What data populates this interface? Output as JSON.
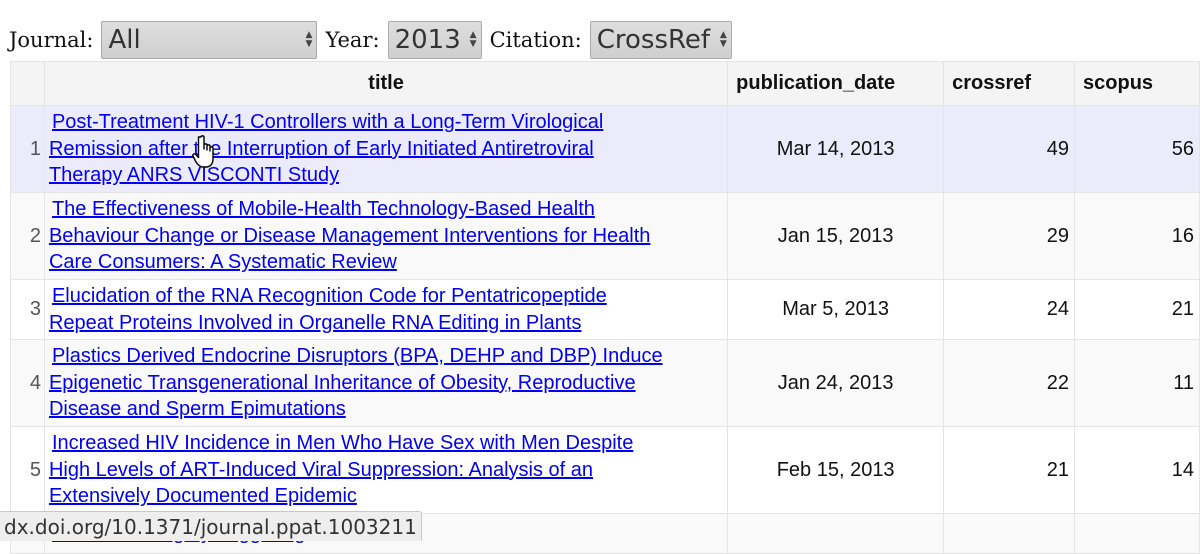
{
  "filters": {
    "journal_label": "Journal:",
    "journal_value": "All",
    "year_label": "Year:",
    "year_value": "2013",
    "citation_label": "Citation:",
    "citation_value": "CrossRef"
  },
  "table": {
    "columns": [
      "",
      "title",
      "publication_date",
      "crossref",
      "scopus"
    ],
    "rows": [
      {
        "num": "1",
        "title_lines": [
          "Post-Treatment HIV-1 Controllers with a Long-Term Virological",
          "Remission after the Interruption of Early Initiated Antiretroviral",
          "Therapy ANRS VISCONTI Study"
        ],
        "date": "Mar 14, 2013",
        "crossref": "49",
        "scopus": "56"
      },
      {
        "num": "2",
        "title_lines": [
          "The Effectiveness of Mobile-Health Technology-Based Health",
          "Behaviour Change or Disease Management Interventions for Health",
          "Care Consumers: A Systematic Review"
        ],
        "date": "Jan 15, 2013",
        "crossref": "29",
        "scopus": "16"
      },
      {
        "num": "3",
        "title_lines": [
          "Elucidation of the RNA Recognition Code for Pentatricopeptide",
          "Repeat Proteins Involved in Organelle RNA Editing in Plants"
        ],
        "date": "Mar 5, 2013",
        "crossref": "24",
        "scopus": "21"
      },
      {
        "num": "4",
        "title_lines": [
          "Plastics Derived Endocrine Disruptors (BPA, DEHP and DBP) Induce",
          "Epigenetic Transgenerational Inheritance of Obesity, Reproductive",
          "Disease and Sperm Epimutations"
        ],
        "date": "Jan 24, 2013",
        "crossref": "22",
        "scopus": "11"
      },
      {
        "num": "5",
        "title_lines": [
          "Increased HIV Incidence in Men Who Have Sex with Men Despite",
          "High Levels of ART-Induced Viral Suppression: Analysis of an",
          "Extensively Documented Epidemic"
        ],
        "date": "Feb 15, 2013",
        "crossref": "21",
        "scopus": "14"
      },
      {
        "num": "",
        "title_lines": [
          "…ot Branching by Triggering"
        ],
        "date": "",
        "crossref": "",
        "scopus": ""
      }
    ]
  },
  "status_url": "dx.doi.org/10.1371/journal.ppat.1003211",
  "icons": {
    "cursor": "hand-pointer-icon",
    "select_arrow": "updown-arrow-icon"
  }
}
